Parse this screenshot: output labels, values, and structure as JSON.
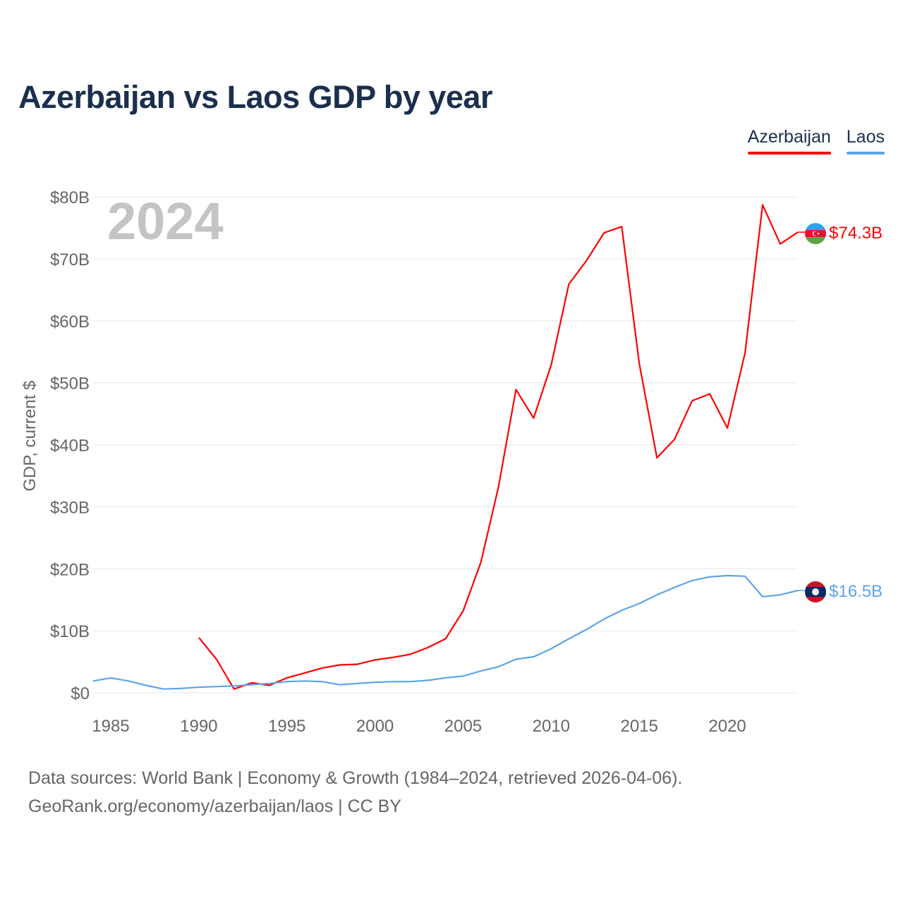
{
  "title": "Azerbaijan vs Laos GDP by year",
  "legend": [
    {
      "name": "Azerbaijan",
      "color": "#ff0000"
    },
    {
      "name": "Laos",
      "color": "#5ea4e8"
    }
  ],
  "chart_data": {
    "type": "line",
    "year_label": "2024",
    "ylabel": "GDP, current $",
    "xlim": [
      1984,
      2024
    ],
    "ylim": [
      0,
      80
    ],
    "x_ticks": [
      1985,
      1990,
      1995,
      2000,
      2005,
      2010,
      2015,
      2020
    ],
    "y_ticks": [
      {
        "value": 0,
        "label": "$0"
      },
      {
        "value": 10,
        "label": "$10B"
      },
      {
        "value": 20,
        "label": "$20B"
      },
      {
        "value": 30,
        "label": "$30B"
      },
      {
        "value": 40,
        "label": "$40B"
      },
      {
        "value": 50,
        "label": "$50B"
      },
      {
        "value": 60,
        "label": "$60B"
      },
      {
        "value": 70,
        "label": "$70B"
      },
      {
        "value": 80,
        "label": "$80B"
      }
    ],
    "series": [
      {
        "name": "Azerbaijan",
        "color": "#ff0000",
        "end_label": "$74.3B",
        "flag": "azerbaijan-flag-icon",
        "x": [
          1990,
          1991,
          1992,
          1993,
          1994,
          1995,
          1996,
          1997,
          1998,
          1999,
          2000,
          2001,
          2002,
          2003,
          2004,
          2005,
          2006,
          2007,
          2008,
          2009,
          2010,
          2011,
          2012,
          2013,
          2014,
          2015,
          2016,
          2017,
          2018,
          2019,
          2020,
          2021,
          2022,
          2023,
          2024
        ],
        "values": [
          8.9,
          5.4,
          0.6,
          1.6,
          1.2,
          2.4,
          3.2,
          4.0,
          4.5,
          4.6,
          5.3,
          5.7,
          6.2,
          7.3,
          8.7,
          13.2,
          21.0,
          33.1,
          48.9,
          44.3,
          52.9,
          65.9,
          69.7,
          74.2,
          75.2,
          53.1,
          37.9,
          40.9,
          47.1,
          48.2,
          42.7,
          54.8,
          78.7,
          72.4,
          74.3
        ]
      },
      {
        "name": "Laos",
        "color": "#5ea4e8",
        "end_label": "$16.5B",
        "flag": "laos-flag-icon",
        "x": [
          1984,
          1985,
          1986,
          1987,
          1988,
          1989,
          1990,
          1991,
          1992,
          1993,
          1994,
          1995,
          1996,
          1997,
          1998,
          1999,
          2000,
          2001,
          2002,
          2003,
          2004,
          2005,
          2006,
          2007,
          2008,
          2009,
          2010,
          2011,
          2012,
          2013,
          2014,
          2015,
          2016,
          2017,
          2018,
          2019,
          2020,
          2021,
          2022,
          2023,
          2024
        ],
        "values": [
          1.9,
          2.4,
          1.9,
          1.2,
          0.6,
          0.7,
          0.9,
          1.0,
          1.1,
          1.3,
          1.5,
          1.8,
          1.9,
          1.8,
          1.3,
          1.5,
          1.7,
          1.8,
          1.8,
          2.0,
          2.4,
          2.7,
          3.5,
          4.2,
          5.4,
          5.8,
          7.1,
          8.7,
          10.2,
          11.9,
          13.3,
          14.4,
          15.8,
          17.0,
          18.1,
          18.7,
          18.9,
          18.8,
          15.5,
          15.8,
          16.5
        ]
      }
    ]
  },
  "footer": {
    "line1": "Data sources: World Bank | Economy & Growth (1984–2024, retrieved 2026-04-06).",
    "line2": "GeoRank.org/economy/azerbaijan/laos | CC BY"
  }
}
